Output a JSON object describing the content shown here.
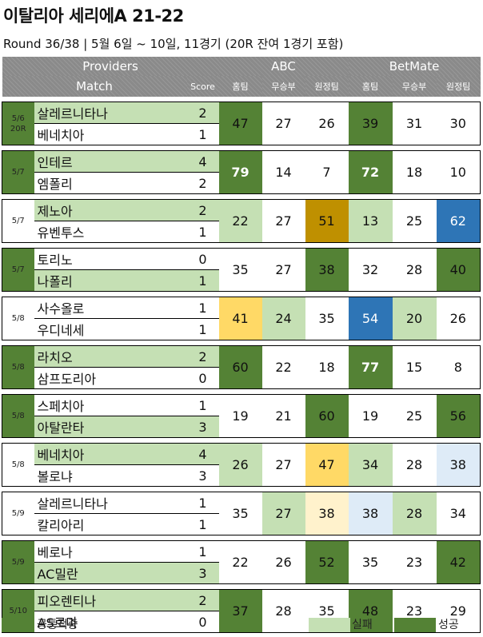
{
  "title": "이탈리아 세리에A 21-22",
  "subtitle": "Round 36/38 | 5월 6일 ~ 10일, 11경기 (20R 잔여 1경기 포함)",
  "headers": {
    "providers": "Providers",
    "match": "Match",
    "score": "Score",
    "abc": "ABC",
    "betmate": "BetMate",
    "home": "홈팀",
    "draw": "무승부",
    "away": "원정팀"
  },
  "colors": {
    "dark_green": "#548235",
    "light_green": "#c5e0b4",
    "yellow": "#ffd966",
    "gold": "#bf9000",
    "blue": "#2e75b6",
    "light_blue": "#deebf7",
    "cream": "#fff2cc",
    "header_gray": "#8a8a8a"
  },
  "chart_data": {
    "type": "table",
    "title": "이탈리아 세리에A 21-22",
    "subtitle": "Round 36/38 | 5월 6일 ~ 10일, 11경기 (20R 잔여 1경기 포함)",
    "columns": [
      "ABC 홈팀",
      "ABC 무승부",
      "ABC 원정팀",
      "BetMate 홈팀",
      "BetMate 무승부",
      "BetMate 원정팀"
    ],
    "matches": [
      {
        "date": "5/6",
        "note": "20R",
        "home": "살레르니타나",
        "away": "베네치아",
        "home_score": "2",
        "away_score": "1",
        "abc": [
          "47",
          "27",
          "26"
        ],
        "betmate": [
          "39",
          "31",
          "30"
        ],
        "abc_style": [
          "dg",
          "white",
          "white"
        ],
        "bm_style": [
          "dg",
          "white",
          "white"
        ],
        "winner": "home",
        "date_style": "dg"
      },
      {
        "date": "5/7",
        "note": "",
        "home": "인테르",
        "away": "엠폴리",
        "home_score": "4",
        "away_score": "2",
        "abc": [
          "79",
          "14",
          "7"
        ],
        "betmate": [
          "72",
          "18",
          "10"
        ],
        "abc_style": [
          "dg-bold",
          "white",
          "white"
        ],
        "bm_style": [
          "dg-bold",
          "white",
          "white"
        ],
        "winner": "home",
        "date_style": "dg"
      },
      {
        "date": "5/7",
        "note": "",
        "home": "제노아",
        "away": "유벤투스",
        "home_score": "2",
        "away_score": "1",
        "abc": [
          "22",
          "27",
          "51"
        ],
        "betmate": [
          "13",
          "25",
          "62"
        ],
        "abc_style": [
          "lg",
          "white",
          "gold"
        ],
        "bm_style": [
          "lg",
          "white",
          "blue"
        ],
        "winner": "home",
        "date_style": "white"
      },
      {
        "date": "5/7",
        "note": "",
        "home": "토리노",
        "away": "나폴리",
        "home_score": "0",
        "away_score": "1",
        "abc": [
          "35",
          "27",
          "38"
        ],
        "betmate": [
          "32",
          "28",
          "40"
        ],
        "abc_style": [
          "white",
          "white",
          "dg"
        ],
        "bm_style": [
          "white",
          "white",
          "dg"
        ],
        "winner": "away",
        "date_style": "dg"
      },
      {
        "date": "5/8",
        "note": "",
        "home": "사수올로",
        "away": "우디네세",
        "home_score": "1",
        "away_score": "1",
        "abc": [
          "41",
          "24",
          "35"
        ],
        "betmate": [
          "54",
          "20",
          "26"
        ],
        "abc_style": [
          "yel",
          "lg",
          "white"
        ],
        "bm_style": [
          "blue",
          "lg",
          "white"
        ],
        "winner": "draw",
        "date_style": "white"
      },
      {
        "date": "5/8",
        "note": "",
        "home": "라치오",
        "away": "삼프도리아",
        "home_score": "2",
        "away_score": "0",
        "abc": [
          "60",
          "22",
          "18"
        ],
        "betmate": [
          "77",
          "15",
          "8"
        ],
        "abc_style": [
          "dg",
          "white",
          "white"
        ],
        "bm_style": [
          "dg-bold",
          "white",
          "white"
        ],
        "winner": "home",
        "date_style": "dg"
      },
      {
        "date": "5/8",
        "note": "",
        "home": "스페치아",
        "away": "아탈란타",
        "home_score": "1",
        "away_score": "3",
        "abc": [
          "19",
          "21",
          "60"
        ],
        "betmate": [
          "19",
          "25",
          "56"
        ],
        "abc_style": [
          "white",
          "white",
          "dg"
        ],
        "bm_style": [
          "white",
          "white",
          "dg"
        ],
        "winner": "away",
        "date_style": "dg"
      },
      {
        "date": "5/8",
        "note": "",
        "home": "베네치아",
        "away": "볼로냐",
        "home_score": "4",
        "away_score": "3",
        "abc": [
          "26",
          "27",
          "47"
        ],
        "betmate": [
          "34",
          "28",
          "38"
        ],
        "abc_style": [
          "lg",
          "white",
          "yel"
        ],
        "bm_style": [
          "lg",
          "white",
          "lblue"
        ],
        "winner": "home",
        "date_style": "white"
      },
      {
        "date": "5/9",
        "note": "",
        "home": "살레르니타나",
        "away": "칼리아리",
        "home_score": "1",
        "away_score": "1",
        "abc": [
          "35",
          "27",
          "38"
        ],
        "betmate": [
          "38",
          "28",
          "34"
        ],
        "abc_style": [
          "white",
          "lg",
          "cream"
        ],
        "bm_style": [
          "lblue",
          "lg",
          "white"
        ],
        "winner": "draw",
        "date_style": "white"
      },
      {
        "date": "5/9",
        "note": "",
        "home": "베로나",
        "away": "AC밀란",
        "home_score": "1",
        "away_score": "3",
        "abc": [
          "22",
          "26",
          "52"
        ],
        "betmate": [
          "35",
          "23",
          "42"
        ],
        "abc_style": [
          "white",
          "white",
          "dg"
        ],
        "bm_style": [
          "white",
          "white",
          "dg"
        ],
        "winner": "away",
        "date_style": "dg"
      },
      {
        "date": "5/10",
        "note": "",
        "home": "피오렌티나",
        "away": "AS로마",
        "home_score": "2",
        "away_score": "0",
        "abc": [
          "37",
          "28",
          "35"
        ],
        "betmate": [
          "48",
          "23",
          "29"
        ],
        "abc_style": [
          "dg",
          "white",
          "white"
        ],
        "bm_style": [
          "dg",
          "white",
          "white"
        ],
        "winner": "home",
        "date_style": "dg"
      }
    ]
  },
  "legend": {
    "common": "공통적중",
    "fail": "실패",
    "success": "성공"
  }
}
